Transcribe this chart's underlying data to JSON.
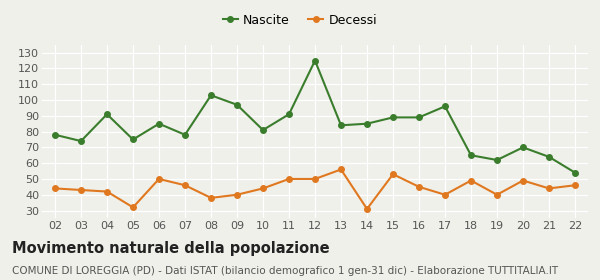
{
  "years": [
    "02",
    "03",
    "04",
    "05",
    "06",
    "07",
    "08",
    "09",
    "10",
    "11",
    "12",
    "13",
    "14",
    "15",
    "16",
    "17",
    "18",
    "19",
    "20",
    "21",
    "22"
  ],
  "nascite": [
    78,
    74,
    91,
    75,
    85,
    78,
    103,
    97,
    81,
    91,
    125,
    84,
    85,
    89,
    89,
    96,
    65,
    62,
    70,
    64,
    54
  ],
  "decessi": [
    44,
    43,
    42,
    32,
    50,
    46,
    38,
    40,
    44,
    50,
    50,
    56,
    31,
    53,
    45,
    40,
    49,
    40,
    49,
    44,
    46
  ],
  "nascite_color": "#3a7d2c",
  "decessi_color": "#e07820",
  "background_color": "#f0f0eb",
  "grid_color": "#ffffff",
  "ylim": [
    25,
    135
  ],
  "yticks": [
    30,
    40,
    50,
    60,
    70,
    80,
    90,
    100,
    110,
    120,
    130
  ],
  "title": "Movimento naturale della popolazione",
  "subtitle": "COMUNE DI LOREGGIA (PD) - Dati ISTAT (bilancio demografico 1 gen-31 dic) - Elaborazione TUTTITALIA.IT",
  "legend_nascite": "Nascite",
  "legend_decessi": "Decessi",
  "title_fontsize": 10.5,
  "subtitle_fontsize": 7.5,
  "tick_fontsize": 8,
  "legend_fontsize": 9,
  "marker_size": 4,
  "line_width": 1.5
}
